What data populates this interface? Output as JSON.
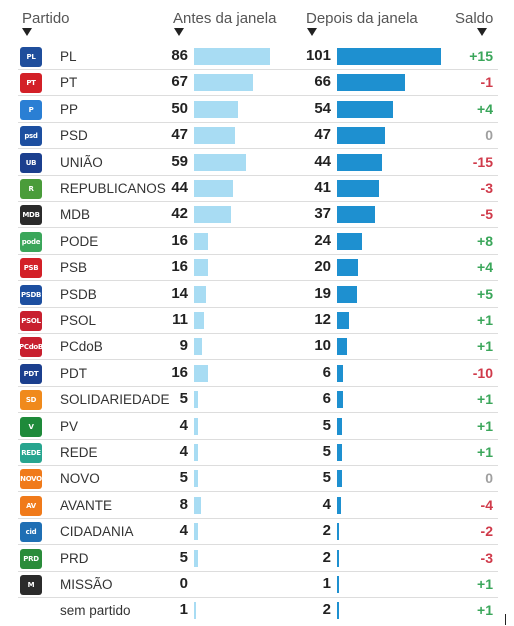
{
  "headers": {
    "partido": "Partido",
    "antes": "Antes da janela",
    "depois": "Depois da janela",
    "saldo": "Saldo"
  },
  "colors": {
    "antes_bar": "#a8dcf3",
    "depois_bar": "#1e90d0",
    "positive": "#3aa65a",
    "negative": "#d03a4a",
    "zero": "#a0a0a0"
  },
  "chart_data": {
    "type": "bar",
    "series": [
      {
        "name": "Antes da janela",
        "values": [
          86,
          67,
          50,
          47,
          59,
          44,
          42,
          16,
          16,
          14,
          11,
          9,
          16,
          5,
          4,
          4,
          5,
          8,
          4,
          5,
          0,
          1
        ]
      },
      {
        "name": "Depois da janela",
        "values": [
          101,
          66,
          54,
          47,
          44,
          41,
          37,
          24,
          20,
          19,
          12,
          10,
          6,
          6,
          5,
          5,
          5,
          4,
          2,
          2,
          1,
          2
        ]
      }
    ],
    "categories": [
      "PL",
      "PT",
      "PP",
      "PSD",
      "UNIÃO",
      "REPUBLICANOS",
      "MDB",
      "PODE",
      "PSB",
      "PSDB",
      "PSOL",
      "PCdoB",
      "PDT",
      "SOLIDARIEDADE",
      "PV",
      "REDE",
      "NOVO",
      "AVANTE",
      "CIDADANIA",
      "PRD",
      "MISSÃO",
      "sem partido"
    ],
    "saldo": [
      "+15",
      "-1",
      "+4",
      "0",
      "-15",
      "-3",
      "-5",
      "+8",
      "+4",
      "+5",
      "+1",
      "+1",
      "-10",
      "+1",
      "+1",
      "+1",
      "0",
      "-4",
      "-2",
      "-3",
      "+1",
      "+1"
    ],
    "logos": [
      {
        "icon": "pl-logo-icon",
        "text": "PL",
        "color": "#1f4e9c"
      },
      {
        "icon": "pt-star-logo-icon",
        "text": "PT",
        "color": "#d32027"
      },
      {
        "icon": "pp-logo-icon",
        "text": "P",
        "color": "#2a7fd4"
      },
      {
        "icon": "psd-logo-icon",
        "text": "psd",
        "color": "#1d4fa0"
      },
      {
        "icon": "uniao-brasil-logo-icon",
        "text": "UB",
        "color": "#1b3f8e"
      },
      {
        "icon": "republicanos-logo-icon",
        "text": "R",
        "color": "#4a9c3a"
      },
      {
        "icon": "mdb-logo-icon",
        "text": "MDB",
        "color": "#2b2b2b"
      },
      {
        "icon": "pode-logo-icon",
        "text": "pode",
        "color": "#3aa65a"
      },
      {
        "icon": "psb-logo-icon",
        "text": "PSB",
        "color": "#d32027"
      },
      {
        "icon": "psdb-logo-icon",
        "text": "PSDB",
        "color": "#1d4fa0"
      },
      {
        "icon": "psol-logo-icon",
        "text": "PSOL",
        "color": "#c8202f"
      },
      {
        "icon": "pcdob-logo-icon",
        "text": "PCdoB",
        "color": "#c8202f"
      },
      {
        "icon": "pdt-logo-icon",
        "text": "PDT",
        "color": "#1b3f8e"
      },
      {
        "icon": "solidariedade-logo-icon",
        "text": "SD",
        "color": "#f08a1c"
      },
      {
        "icon": "pv-logo-icon",
        "text": "V",
        "color": "#1e8a3a"
      },
      {
        "icon": "rede-logo-icon",
        "text": "REDE",
        "color": "#27a58f"
      },
      {
        "icon": "novo-logo-icon",
        "text": "NOVO",
        "color": "#f07a1a"
      },
      {
        "icon": "avante-logo-icon",
        "text": "AV",
        "color": "#f07a1a"
      },
      {
        "icon": "cidadania-logo-icon",
        "text": "cid",
        "color": "#1f6fb4"
      },
      {
        "icon": "prd-logo-icon",
        "text": "PRD",
        "color": "#2a8c3a"
      },
      {
        "icon": "missao-logo-icon",
        "text": "M",
        "color": "#2b2b2b"
      },
      {
        "icon": "",
        "text": "",
        "color": ""
      }
    ],
    "xlim": [
      0,
      101
    ]
  }
}
